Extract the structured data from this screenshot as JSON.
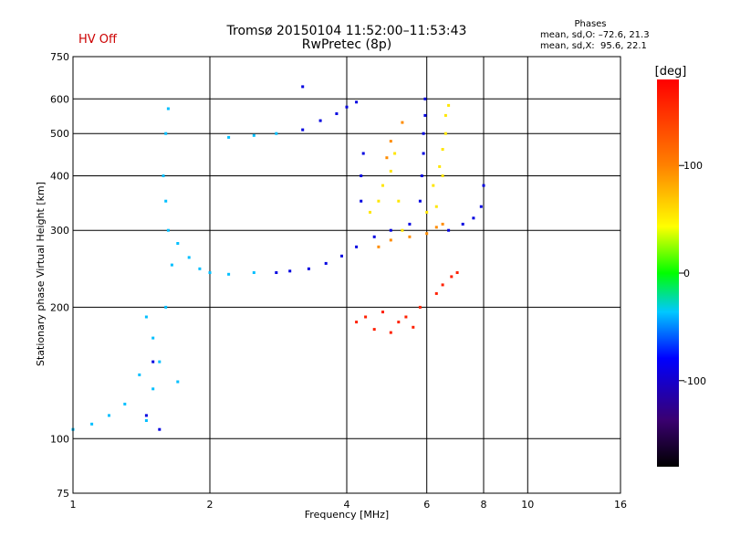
{
  "header": {
    "title_line1": "Tromsø 20150104 11:52:00–11:53:43",
    "title_line2": "RwPretec (8p)",
    "hv_status": "HV Off",
    "phase_title": "Phases",
    "phase_o": "mean, sd,O: –72.6, 21.3",
    "phase_x": "mean, sd,X:  95.6, 22.1"
  },
  "chart_data": {
    "type": "scatter",
    "xlabel": "Frequency [MHz]",
    "ylabel": "Stationary phase Virtual Height [km]",
    "x_scale": "log",
    "y_scale": "log",
    "xlim": [
      1,
      16
    ],
    "ylim": [
      75,
      750
    ],
    "x_ticks": [
      1,
      2,
      4,
      6,
      8,
      10,
      16
    ],
    "y_ticks": [
      75,
      100,
      200,
      300,
      400,
      500,
      600,
      750
    ],
    "grid": true,
    "colorbar": {
      "label": "[deg]",
      "range": [
        -180,
        180
      ],
      "ticks": [
        -100,
        0,
        100
      ],
      "colormap": [
        "#000000",
        "#3a0070",
        "#0000ff",
        "#00c8ff",
        "#00ff00",
        "#ffff00",
        "#ff8000",
        "#ff0000"
      ]
    },
    "series": [
      {
        "color": "#00bfff",
        "points": [
          [
            1.5,
            170
          ],
          [
            1.45,
            190
          ],
          [
            1.55,
            150
          ],
          [
            1.5,
            130
          ],
          [
            1.4,
            140
          ],
          [
            1.6,
            200
          ],
          [
            1.62,
            300
          ],
          [
            1.6,
            350
          ],
          [
            1.58,
            400
          ],
          [
            1.6,
            500
          ],
          [
            1.62,
            570
          ],
          [
            1.65,
            250
          ],
          [
            1.7,
            280
          ],
          [
            1.8,
            260
          ],
          [
            1.9,
            245
          ],
          [
            2.0,
            240
          ],
          [
            2.2,
            238
          ],
          [
            2.5,
            240
          ],
          [
            2.2,
            490
          ],
          [
            2.5,
            495
          ],
          [
            2.8,
            500
          ],
          [
            1.3,
            120
          ],
          [
            1.2,
            113
          ],
          [
            1.1,
            108
          ],
          [
            1.45,
            110
          ],
          [
            1.7,
            135
          ],
          [
            1.0,
            105
          ]
        ]
      },
      {
        "color": "#0000e0",
        "points": [
          [
            2.8,
            240
          ],
          [
            3.0,
            242
          ],
          [
            3.3,
            245
          ],
          [
            3.6,
            252
          ],
          [
            3.9,
            262
          ],
          [
            4.2,
            275
          ],
          [
            4.6,
            290
          ],
          [
            5.0,
            300
          ],
          [
            5.5,
            310
          ],
          [
            4.3,
            400
          ],
          [
            4.35,
            450
          ],
          [
            4.3,
            350
          ],
          [
            5.8,
            350
          ],
          [
            5.85,
            400
          ],
          [
            5.9,
            450
          ],
          [
            5.9,
            500
          ],
          [
            5.95,
            550
          ],
          [
            5.95,
            600
          ],
          [
            6.7,
            300
          ],
          [
            7.2,
            310
          ],
          [
            7.6,
            320
          ],
          [
            7.9,
            340
          ],
          [
            8.0,
            380
          ],
          [
            3.2,
            510
          ],
          [
            3.5,
            535
          ],
          [
            3.8,
            555
          ],
          [
            4.0,
            575
          ],
          [
            4.2,
            590
          ],
          [
            1.5,
            150
          ],
          [
            1.45,
            113
          ],
          [
            1.55,
            105
          ],
          [
            3.2,
            640
          ]
        ]
      },
      {
        "color": "#ffe600",
        "points": [
          [
            4.5,
            330
          ],
          [
            4.7,
            350
          ],
          [
            4.8,
            380
          ],
          [
            5.0,
            410
          ],
          [
            5.1,
            450
          ],
          [
            5.2,
            350
          ],
          [
            5.3,
            300
          ],
          [
            6.0,
            330
          ],
          [
            6.2,
            380
          ],
          [
            6.4,
            420
          ],
          [
            6.5,
            460
          ],
          [
            6.6,
            500
          ],
          [
            6.6,
            550
          ],
          [
            6.7,
            580
          ],
          [
            6.3,
            340
          ],
          [
            6.5,
            400
          ]
        ]
      },
      {
        "color": "#ff8c00",
        "points": [
          [
            4.7,
            275
          ],
          [
            5.0,
            285
          ],
          [
            5.5,
            290
          ],
          [
            6.0,
            295
          ],
          [
            6.3,
            305
          ],
          [
            6.5,
            310
          ],
          [
            4.9,
            440
          ],
          [
            5.0,
            480
          ],
          [
            5.3,
            530
          ]
        ]
      },
      {
        "color": "#ff2000",
        "points": [
          [
            4.2,
            185
          ],
          [
            4.4,
            190
          ],
          [
            4.6,
            178
          ],
          [
            4.8,
            195
          ],
          [
            5.0,
            175
          ],
          [
            5.2,
            185
          ],
          [
            5.4,
            190
          ],
          [
            5.6,
            180
          ],
          [
            5.8,
            200
          ],
          [
            6.3,
            215
          ],
          [
            6.5,
            225
          ],
          [
            6.8,
            235
          ],
          [
            7.0,
            240
          ]
        ]
      }
    ]
  }
}
